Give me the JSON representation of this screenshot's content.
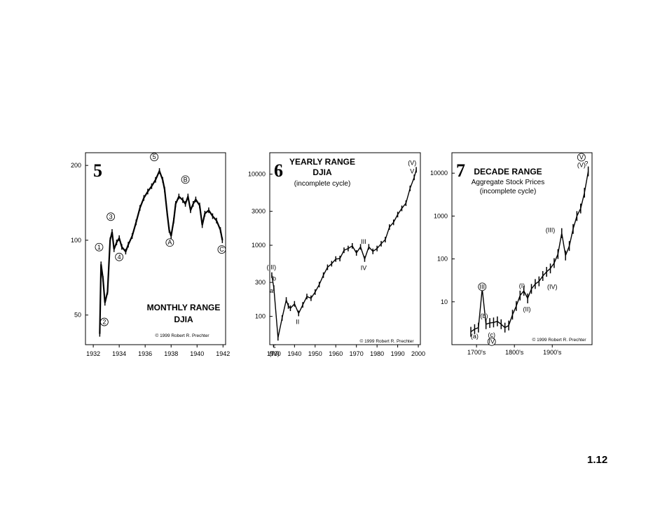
{
  "page_number": "1.12",
  "chart_data": [
    {
      "type": "line",
      "number": "5",
      "title": "MONTHLY RANGE",
      "subtitle": "DJIA",
      "copyright": "© 1999 Robert R. Prechter",
      "y_scale": "log",
      "y_ticks": [
        "200",
        "100",
        "50"
      ],
      "x_ticks": [
        "1932",
        "1934",
        "1936",
        "1938",
        "1940",
        "1942"
      ],
      "xlim": [
        1931.4,
        1942.2
      ],
      "ylim": [
        38,
        225
      ],
      "series": [
        {
          "x": [
            1932.5,
            1932.6,
            1932.75,
            1932.9,
            1933.1,
            1933.3,
            1933.45,
            1933.6,
            1933.8,
            1934.0,
            1934.2,
            1934.5,
            1934.7,
            1935.0,
            1935.3,
            1935.6,
            1935.9,
            1936.2,
            1936.5,
            1936.8,
            1937.1,
            1937.35,
            1937.5,
            1937.7,
            1937.85,
            1938.0,
            1938.2,
            1938.35,
            1938.6,
            1938.9,
            1939.1,
            1939.3,
            1939.5,
            1939.7,
            1939.9,
            1940.2,
            1940.4,
            1940.6,
            1940.9,
            1941.2,
            1941.5,
            1941.8,
            1941.95
          ],
          "y": [
            42,
            80,
            70,
            56,
            62,
            100,
            108,
            92,
            98,
            102,
            94,
            90,
            96,
            104,
            118,
            135,
            148,
            157,
            165,
            175,
            190,
            175,
            160,
            128,
            110,
            104,
            120,
            140,
            150,
            145,
            140,
            150,
            132,
            140,
            146,
            138,
            115,
            128,
            132,
            125,
            120,
            110,
            100
          ]
        }
      ],
      "wave_labels": [
        "1",
        "2",
        "3",
        "4",
        "5",
        "A",
        "B",
        "C"
      ]
    },
    {
      "type": "line",
      "number": "6",
      "title": "YEARLY RANGE",
      "subtitle": "DJIA",
      "note": "(incomplete cycle)",
      "copyright": "© 1999 Robert R. Prechter",
      "y_scale": "log",
      "y_ticks": [
        "10000",
        "3000",
        "1000",
        "300",
        "100"
      ],
      "x_ticks": [
        "1930",
        "1940",
        "1950",
        "1960",
        "1970",
        "1980",
        "1990",
        "2000"
      ],
      "xlim": [
        1928,
        2001
      ],
      "ylim": [
        40,
        20000
      ],
      "series": [
        {
          "x": [
            1929,
            1930,
            1932,
            1934,
            1936,
            1937,
            1938,
            1940,
            1942,
            1944,
            1946,
            1948,
            1950,
            1952,
            1954,
            1956,
            1958,
            1960,
            1962,
            1964,
            1966,
            1968,
            1970,
            1972,
            1974,
            1976,
            1978,
            1980,
            1982,
            1984,
            1986,
            1988,
            1990,
            1992,
            1994,
            1996,
            1998,
            1999
          ],
          "y": [
            380,
            250,
            50,
            95,
            170,
            140,
            130,
            150,
            110,
            145,
            190,
            180,
            220,
            280,
            380,
            490,
            550,
            640,
            650,
            850,
            900,
            980,
            780,
            950,
            640,
            950,
            820,
            900,
            1050,
            1200,
            1800,
            2100,
            2700,
            3300,
            3900,
            6300,
            9000,
            11500
          ]
        }
      ],
      "wave_labels": [
        "(III)",
        "a",
        "b",
        "c",
        "(IV)",
        "II",
        "III",
        "IV",
        "(V)",
        "V"
      ]
    },
    {
      "type": "line",
      "number": "7",
      "title": "DECADE RANGE",
      "subtitle": "Aggregate Stock Prices",
      "note": "(incomplete cycle)",
      "copyright": "© 1999 Robert R. Prechter",
      "y_scale": "log",
      "y_ticks": [
        "10000",
        "1000",
        "100",
        "10"
      ],
      "x_ticks": [
        "1700's",
        "1800's",
        "1900's"
      ],
      "xlim": [
        1640,
        2010
      ],
      "ylim": [
        1,
        30000
      ],
      "series": [
        {
          "x": [
            1690,
            1700,
            1710,
            1720,
            1730,
            1740,
            1750,
            1760,
            1770,
            1780,
            1790,
            1800,
            1810,
            1820,
            1830,
            1840,
            1850,
            1860,
            1870,
            1880,
            1890,
            1900,
            1910,
            1920,
            1930,
            1940,
            1950,
            1960,
            1970,
            1980,
            1990,
            2000
          ],
          "y": [
            2,
            2.3,
            2.5,
            20,
            3,
            3.2,
            3.3,
            3.5,
            3,
            2.5,
            2.8,
            5,
            8,
            14,
            18,
            12,
            20,
            26,
            30,
            40,
            50,
            60,
            80,
            130,
            400,
            120,
            200,
            500,
            1000,
            1500,
            3500,
            11000
          ]
        }
      ],
      "wave_labels": [
        "III",
        "(a)",
        "(b)",
        "(c)",
        "IV",
        "(I)",
        "(II)",
        "(III)",
        "(IV)",
        "V",
        "(V)",
        "?"
      ]
    }
  ]
}
